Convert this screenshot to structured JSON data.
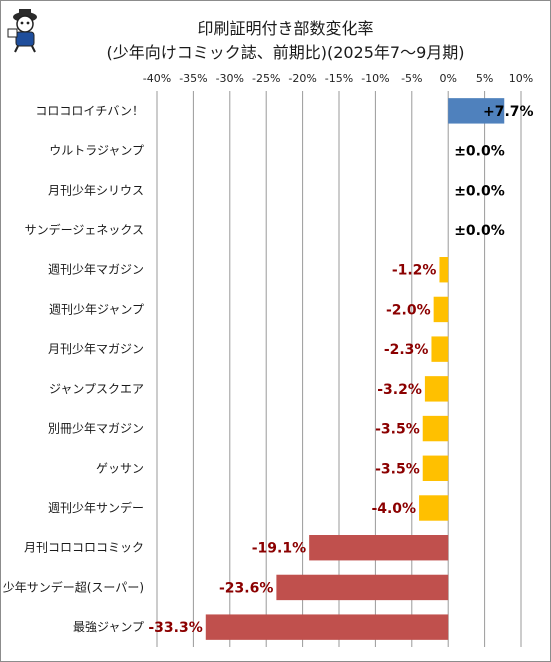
{
  "chart_data": {
    "type": "bar",
    "orientation": "horizontal",
    "title": "印刷証明付き部数変化率",
    "subtitle": "(少年向けコミック誌、前期比)(2025年7～9月期)",
    "categories": [
      "コロコロイチバン！",
      "ウルトラジャンプ",
      "月刊少年シリウス",
      "サンデージェネックス",
      "週刊少年マガジン",
      "週刊少年ジャンプ",
      "月刊少年マガジン",
      "ジャンプスクエア",
      "別冊少年マガジン",
      "ゲッサン",
      "週刊少年サンデー",
      "月刊コロコロコミック",
      "少年サンデー超(スーパー)",
      "最強ジャンプ"
    ],
    "values": [
      7.7,
      0.0,
      0.0,
      0.0,
      -1.2,
      -2.0,
      -2.3,
      -3.2,
      -3.5,
      -3.5,
      -4.0,
      -19.1,
      -23.6,
      -33.3
    ],
    "value_labels": [
      "+7.7%",
      "±0.0%",
      "±0.0%",
      "±0.0%",
      "-1.2%",
      "-2.0%",
      "-2.3%",
      "-3.2%",
      "-3.5%",
      "-3.5%",
      "-4.0%",
      "-19.1%",
      "-23.6%",
      "-33.3%"
    ],
    "xlim": [
      -40,
      10
    ],
    "x_ticks": [
      -40,
      -35,
      -30,
      -25,
      -20,
      -15,
      -10,
      -5,
      0,
      5,
      10
    ],
    "x_tick_labels": [
      "-40%",
      "-35%",
      "-30%",
      "-25%",
      "-20%",
      "-15%",
      "-10%",
      "-5%",
      "0%",
      "5%",
      "10%"
    ],
    "axis_position": "top",
    "grid": true,
    "legend": "none",
    "colors": {
      "positive": "#4f81bd",
      "small_negative": "#ffc000",
      "large_negative": "#c0504d",
      "label_negative": "#8b0000",
      "label_positive": "#000000",
      "grid": "#9a9a9a"
    }
  }
}
